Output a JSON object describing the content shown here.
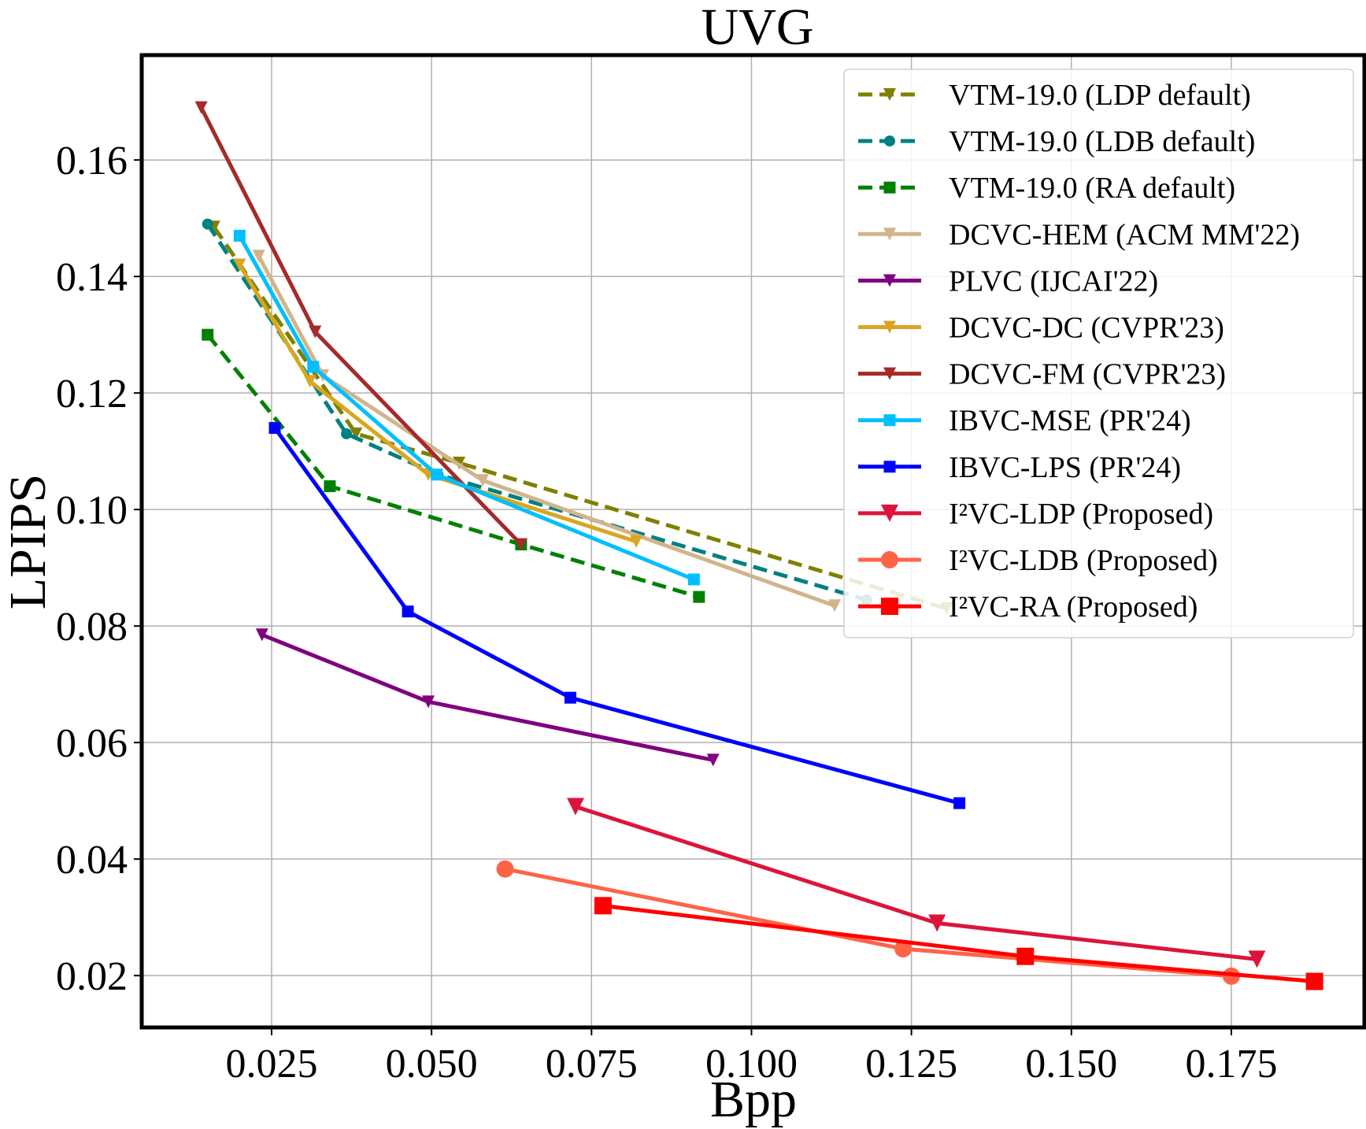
{
  "chart_data": {
    "type": "line",
    "title": "UVG",
    "xlabel": "Bpp",
    "ylabel": "LPIPS",
    "xlim": [
      0.0047,
      0.1958
    ],
    "ylim": [
      0.0111,
      0.178
    ],
    "xticks": [
      0.025,
      0.05,
      0.075,
      0.1,
      0.125,
      0.15,
      0.175
    ],
    "xtick_labels": [
      "0.025",
      "0.050",
      "0.075",
      "0.100",
      "0.125",
      "0.150",
      "0.175"
    ],
    "yticks": [
      0.02,
      0.04,
      0.06,
      0.08,
      0.1,
      0.12,
      0.14,
      0.16
    ],
    "ytick_labels": [
      "0.02",
      "0.04",
      "0.06",
      "0.08",
      "0.10",
      "0.12",
      "0.14",
      "0.16"
    ],
    "grid": true,
    "legend_position": "top-right",
    "series": [
      {
        "name": "VTM-19.0 (LDP default)",
        "color": "#808000",
        "dash": true,
        "marker": "triangle-down",
        "x": [
          0.016,
          0.0382,
          0.0543,
          0.1305
        ],
        "y": [
          0.1485,
          0.113,
          0.108,
          0.083
        ]
      },
      {
        "name": "VTM-19.0 (LDB default)",
        "color": "#008080",
        "dash": true,
        "marker": "circle",
        "x": [
          0.015,
          0.0367,
          0.051,
          0.118
        ],
        "y": [
          0.149,
          0.113,
          0.106,
          0.0845
        ]
      },
      {
        "name": "VTM-19.0 (RA default)",
        "color": "#008000",
        "dash": true,
        "marker": "square",
        "x": [
          0.015,
          0.0341,
          0.064,
          0.0918
        ],
        "y": [
          0.13,
          0.104,
          0.094,
          0.085
        ]
      },
      {
        "name": "DCVC-HEM (ACM MM'22)",
        "color": "#d2b48c",
        "dash": false,
        "marker": "triangle-down",
        "x": [
          0.023,
          0.033,
          0.058,
          0.113
        ],
        "y": [
          0.1435,
          0.123,
          0.105,
          0.0835
        ]
      },
      {
        "name": "PLVC (IJCAI'22)",
        "color": "#800080",
        "dash": false,
        "marker": "triangle-down",
        "x": [
          0.0235,
          0.0495,
          0.094
        ],
        "y": [
          0.0785,
          0.067,
          0.057
        ]
      },
      {
        "name": "DCVC-DC (CVPR'23)",
        "color": "#daa520",
        "dash": false,
        "marker": "triangle-down",
        "x": [
          0.02,
          0.031,
          0.0495,
          0.082
        ],
        "y": [
          0.142,
          0.122,
          0.106,
          0.0945
        ]
      },
      {
        "name": "DCVC-FM (CVPR'23)",
        "color": "#a52a2a",
        "dash": false,
        "marker": "triangle-down",
        "x": [
          0.014,
          0.0318,
          0.064
        ],
        "y": [
          0.169,
          0.1305,
          0.094
        ]
      },
      {
        "name": "IBVC-MSE (PR'24)",
        "color": "#00bfff",
        "dash": false,
        "marker": "square",
        "x": [
          0.02,
          0.0315,
          0.0508,
          0.091
        ],
        "y": [
          0.147,
          0.1245,
          0.106,
          0.088
        ]
      },
      {
        "name": "IBVC-LPS (PR'24)",
        "color": "#0000ff",
        "dash": false,
        "marker": "square",
        "x": [
          0.0255,
          0.0463,
          0.0717,
          0.1325
        ],
        "y": [
          0.114,
          0.0825,
          0.0677,
          0.0496
        ]
      },
      {
        "name": "I²VC-LDP (Proposed)",
        "color": "#dc143c",
        "dash": false,
        "marker": "triangle-down-large",
        "x": [
          0.0725,
          0.129,
          0.179
        ],
        "y": [
          0.049,
          0.029,
          0.0228
        ]
      },
      {
        "name": "I²VC-LDB (Proposed)",
        "color": "#ff6347",
        "dash": false,
        "marker": "circle-large",
        "x": [
          0.0615,
          0.1237,
          0.175
        ],
        "y": [
          0.0383,
          0.0246,
          0.0199
        ]
      },
      {
        "name": "I²VC-RA (Proposed)",
        "color": "#ff0000",
        "dash": false,
        "marker": "square-large",
        "x": [
          0.0768,
          0.1428,
          0.188
        ],
        "y": [
          0.032,
          0.0233,
          0.019
        ]
      }
    ]
  }
}
